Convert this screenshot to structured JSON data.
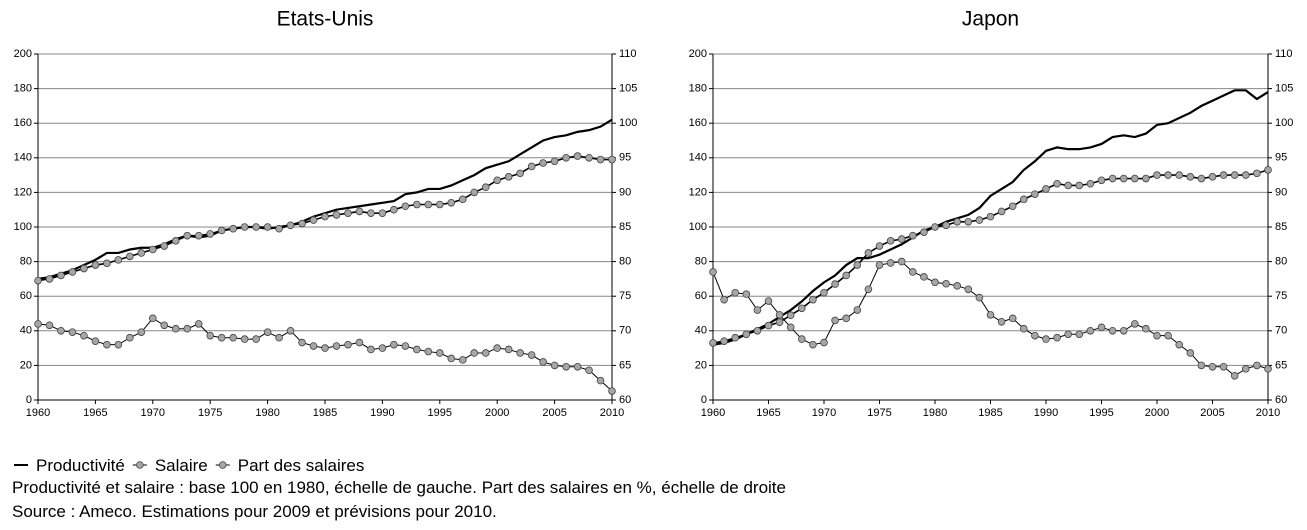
{
  "chart_data": [
    {
      "type": "line",
      "title": "Etats-Unis",
      "x": [
        1960,
        1961,
        1962,
        1963,
        1964,
        1965,
        1966,
        1967,
        1968,
        1969,
        1970,
        1971,
        1972,
        1973,
        1974,
        1975,
        1976,
        1977,
        1978,
        1979,
        1980,
        1981,
        1982,
        1983,
        1984,
        1985,
        1986,
        1987,
        1988,
        1989,
        1990,
        1991,
        1992,
        1993,
        1994,
        1995,
        1996,
        1997,
        1998,
        1999,
        2000,
        2001,
        2002,
        2003,
        2004,
        2005,
        2006,
        2007,
        2008,
        2009,
        2010
      ],
      "xlim": [
        1960,
        2010
      ],
      "xticks": [
        1960,
        1965,
        1970,
        1975,
        1980,
        1985,
        1990,
        1995,
        2000,
        2005,
        2010
      ],
      "ylim": [
        0,
        200
      ],
      "yticks": [
        0,
        20,
        40,
        60,
        80,
        100,
        120,
        140,
        160,
        180,
        200
      ],
      "y2lim": [
        60,
        110
      ],
      "y2ticks": [
        60,
        65,
        70,
        75,
        80,
        85,
        90,
        95,
        100,
        105,
        110
      ],
      "grid": true,
      "series": [
        {
          "name": "Productivité",
          "color": "#000000",
          "values": [
            70,
            71,
            73,
            75,
            78,
            81,
            85,
            85,
            87,
            88,
            88,
            90,
            93,
            95,
            94,
            95,
            98,
            99,
            100,
            100,
            99,
            100,
            101,
            103,
            106,
            108,
            110,
            111,
            112,
            113,
            114,
            115,
            119,
            120,
            122,
            122,
            124,
            127,
            130,
            134,
            136,
            138,
            142,
            146,
            150,
            152,
            153,
            155,
            156,
            158,
            162
          ]
        },
        {
          "name": "Salaire",
          "color": "#a6a6a6",
          "marker": "circle",
          "values": [
            69,
            70,
            72,
            74,
            76,
            78,
            79,
            81,
            83,
            85,
            87,
            89,
            92,
            95,
            95,
            96,
            98,
            99,
            100,
            100,
            100,
            99,
            101,
            102,
            104,
            106,
            107,
            108,
            109,
            108,
            108,
            110,
            112,
            113,
            113,
            113,
            114,
            116,
            120,
            123,
            127,
            129,
            131,
            135,
            137,
            138,
            140,
            141,
            140,
            139,
            139
          ]
        },
        {
          "name": "Part des salaires",
          "color": "#a6a6a6",
          "marker": "circle",
          "axis": "y2",
          "values": [
            71,
            70.8,
            70,
            69.8,
            69.3,
            68.5,
            68,
            68,
            69,
            69.8,
            71.8,
            70.8,
            70.3,
            70.3,
            71,
            69.3,
            69,
            69,
            68.8,
            68.8,
            69.8,
            69,
            70,
            68.3,
            67.8,
            67.5,
            67.8,
            68,
            68.3,
            67.3,
            67.5,
            68,
            67.8,
            67.3,
            67,
            66.8,
            66,
            65.8,
            66.8,
            66.8,
            67.5,
            67.3,
            66.8,
            66.5,
            65.5,
            65,
            64.8,
            64.8,
            64.3,
            62.8,
            61.3
          ]
        }
      ]
    },
    {
      "type": "line",
      "title": "Japon",
      "x": [
        1960,
        1961,
        1962,
        1963,
        1964,
        1965,
        1966,
        1967,
        1968,
        1969,
        1970,
        1971,
        1972,
        1973,
        1974,
        1975,
        1976,
        1977,
        1978,
        1979,
        1980,
        1981,
        1982,
        1983,
        1984,
        1985,
        1986,
        1987,
        1988,
        1989,
        1990,
        1991,
        1992,
        1993,
        1994,
        1995,
        1996,
        1997,
        1998,
        1999,
        2000,
        2001,
        2002,
        2003,
        2004,
        2005,
        2006,
        2007,
        2008,
        2009,
        2010
      ],
      "xlim": [
        1960,
        2010
      ],
      "xticks": [
        1960,
        1965,
        1970,
        1975,
        1980,
        1985,
        1990,
        1995,
        2000,
        2005,
        2010
      ],
      "ylim": [
        0,
        200
      ],
      "yticks": [
        0,
        20,
        40,
        60,
        80,
        100,
        120,
        140,
        160,
        180,
        200
      ],
      "y2lim": [
        60,
        110
      ],
      "y2ticks": [
        60,
        65,
        70,
        75,
        80,
        85,
        90,
        95,
        100,
        105,
        110
      ],
      "grid": true,
      "series": [
        {
          "color": "#000000",
          "values": [
            32,
            33,
            35,
            38,
            41,
            44,
            48,
            52,
            57,
            63,
            68,
            72,
            78,
            82,
            82,
            84,
            87,
            90,
            94,
            98,
            100,
            103,
            105,
            107,
            111,
            118,
            122,
            126,
            133,
            138,
            144,
            146,
            145,
            145,
            146,
            148,
            152,
            153,
            152,
            154,
            159,
            160,
            163,
            166,
            170,
            173,
            176,
            179,
            179,
            174,
            178
          ]
        },
        {
          "color": "#a6a6a6",
          "marker": "circle",
          "values": [
            33,
            34,
            36,
            38,
            40,
            43,
            45,
            49,
            53,
            58,
            62,
            67,
            72,
            78,
            85,
            89,
            92,
            93,
            95,
            97,
            100,
            101,
            103,
            103,
            104,
            106,
            109,
            112,
            116,
            119,
            122,
            125,
            124,
            124,
            125,
            127,
            128,
            128,
            128,
            128,
            130,
            130,
            130,
            129,
            128,
            129,
            130,
            130,
            130,
            131,
            133
          ]
        },
        {
          "color": "#a6a6a6",
          "marker": "circle",
          "axis": "y2",
          "values": [
            78.5,
            74.5,
            75.5,
            75.3,
            73,
            74.3,
            72.3,
            70.5,
            68.8,
            68,
            68.3,
            71.5,
            71.8,
            73,
            76,
            79.5,
            79.8,
            80,
            78.5,
            77.8,
            77,
            76.8,
            76.5,
            76,
            74.8,
            72.3,
            71.3,
            71.8,
            70.3,
            69.3,
            68.8,
            69,
            69.5,
            69.5,
            70,
            70.5,
            70,
            70,
            71,
            70.3,
            69.3,
            69.3,
            68,
            66.8,
            65,
            64.8,
            64.8,
            63.5,
            64.5,
            65,
            64.5
          ]
        }
      ]
    }
  ],
  "notes": [
    "Productivité et salaire : base 100 en 1980, échelle de gauche. Part des salaires en %, échelle de droite",
    "Source : Ameco. Estimations pour 2009 et prévisions pour 2010."
  ]
}
